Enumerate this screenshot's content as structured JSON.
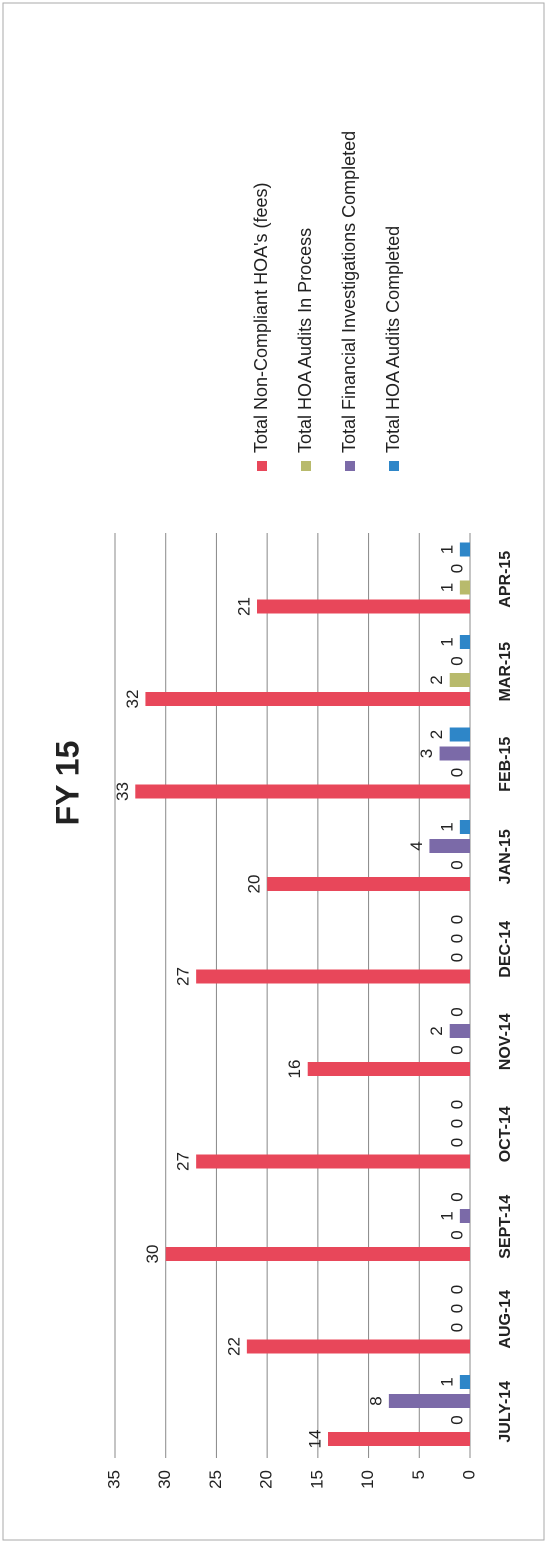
{
  "chart_data": {
    "type": "bar",
    "title": "FY 15",
    "categories": [
      "JULY-14",
      "AUG-14",
      "SEPT-14",
      "OCT-14",
      "NOV-14",
      "DEC-14",
      "JAN-15",
      "FEB-15",
      "MAR-15",
      "APR-15"
    ],
    "series": [
      {
        "name": "Total Non-Compliant HOA's (fees)",
        "color": "#e8475a",
        "values": [
          14,
          22,
          30,
          27,
          16,
          27,
          20,
          33,
          32,
          21
        ]
      },
      {
        "name": "Total HOA Audits In Process",
        "color": "#b8ba6c",
        "values": [
          0,
          0,
          0,
          0,
          0,
          0,
          0,
          0,
          2,
          1
        ]
      },
      {
        "name": "Total Financial Investigations Completed",
        "color": "#7b6aa8",
        "values": [
          8,
          0,
          1,
          0,
          2,
          0,
          4,
          3,
          0,
          0
        ]
      },
      {
        "name": "Total HOA Audits Completed",
        "color": "#2e86c8",
        "values": [
          1,
          0,
          0,
          0,
          0,
          0,
          1,
          2,
          1,
          1
        ]
      }
    ],
    "ylim": [
      0,
      35
    ],
    "yticks": [
      0,
      5,
      10,
      15,
      20,
      25,
      30,
      35
    ],
    "grid": true,
    "legend": "right"
  }
}
